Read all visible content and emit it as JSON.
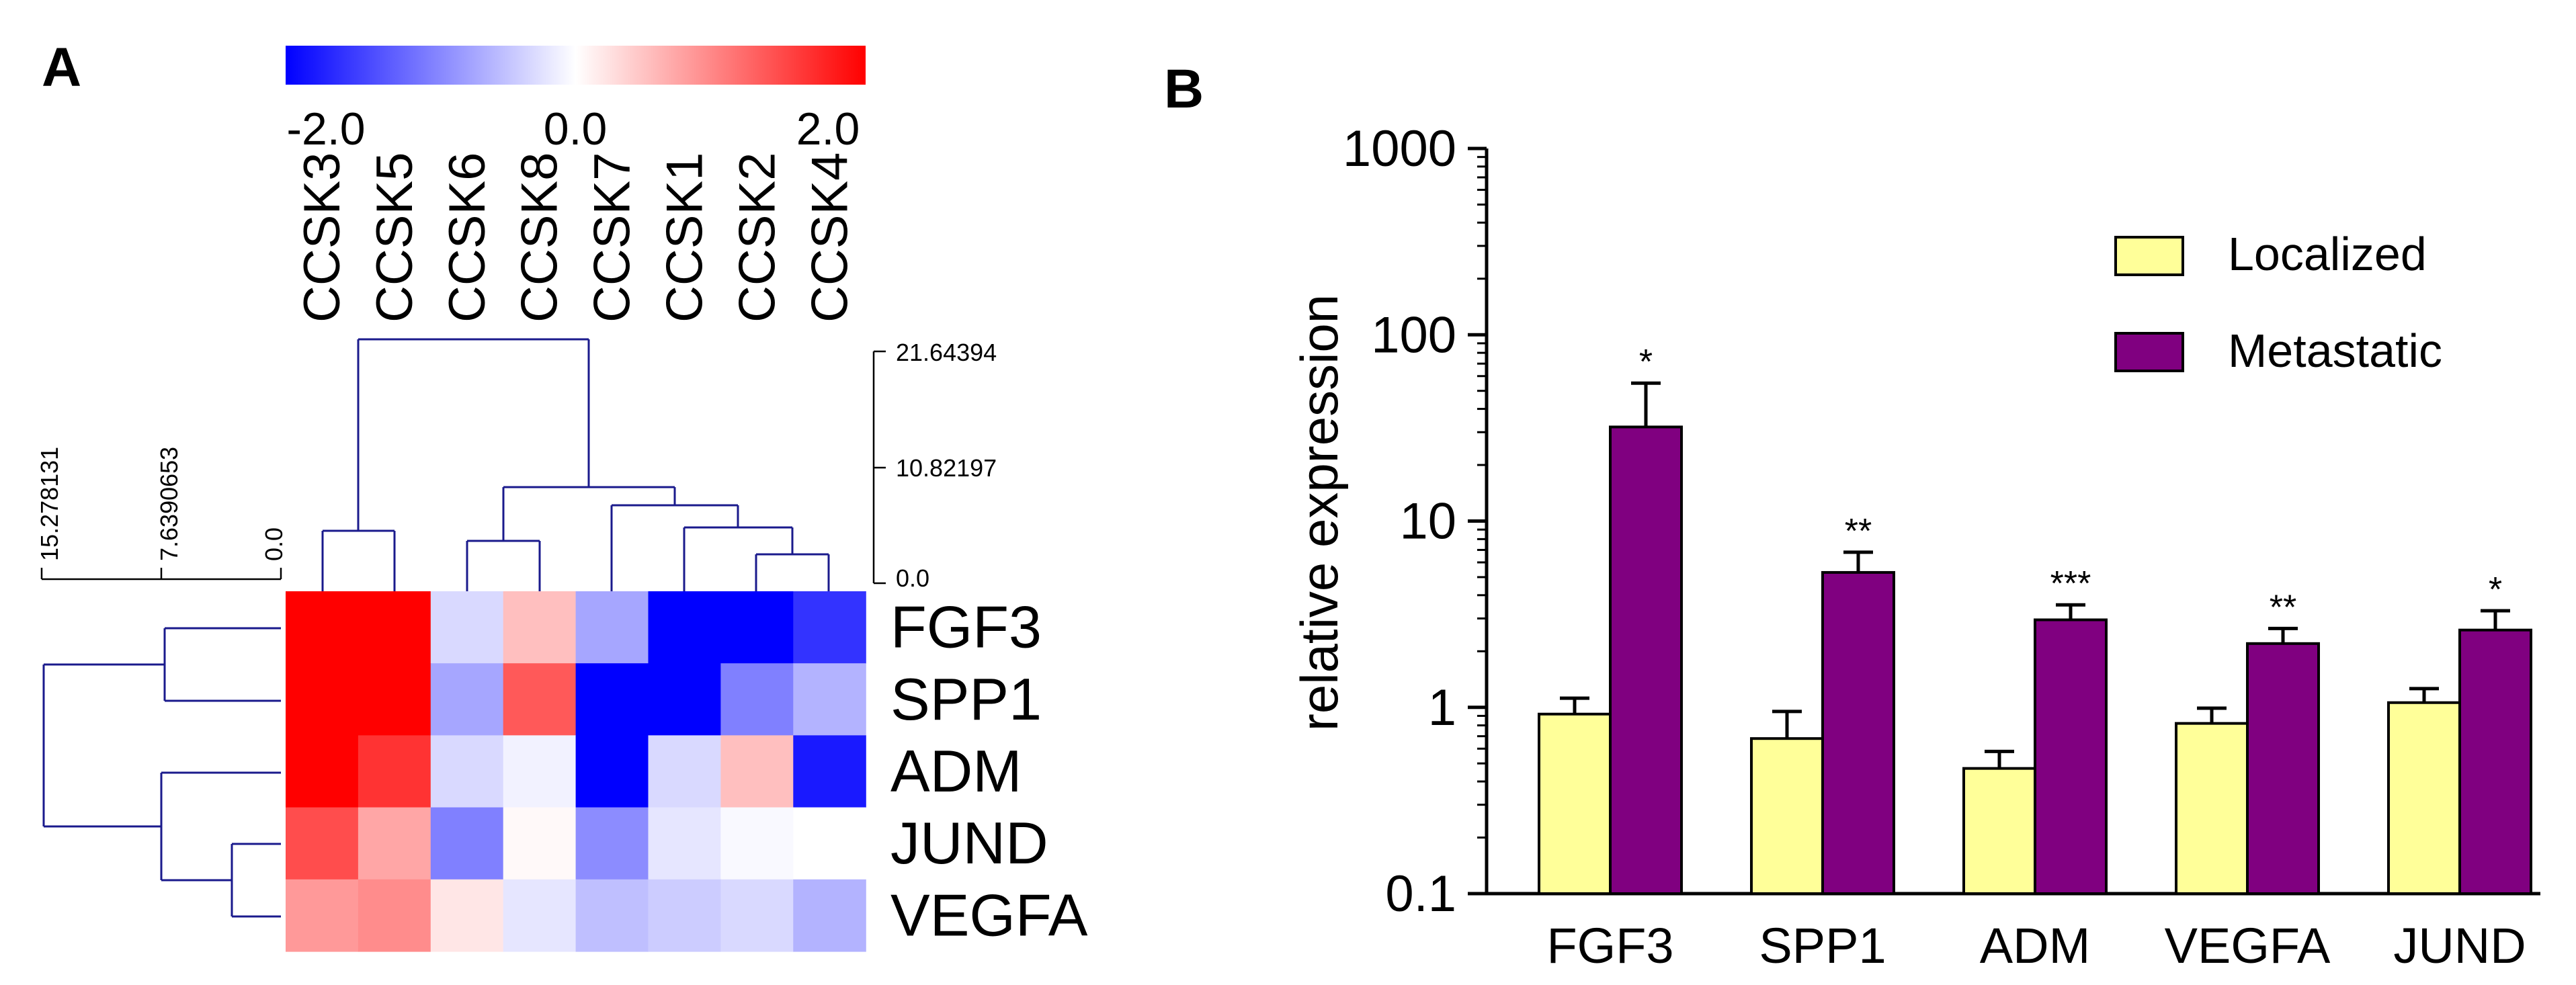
{
  "chart_data": [
    {
      "panel": "A",
      "type": "heatmap",
      "title": "",
      "color_scale": {
        "min": -2.0,
        "mid": 0.0,
        "max": 2.0,
        "labels": [
          "-2.0",
          "0.0",
          "2.0"
        ],
        "colors": [
          "#0000ff",
          "#ffffff",
          "#ff0000"
        ]
      },
      "columns": [
        "CCSK3",
        "CCSK5",
        "CCSK6",
        "CCSK8",
        "CCSK7",
        "CCSK1",
        "CCSK2",
        "CCSK4"
      ],
      "rows": [
        "FGF3",
        "SPP1",
        "ADM",
        "JUND",
        "VEGFA"
      ],
      "values": [
        [
          2.0,
          2.0,
          -0.3,
          0.5,
          -0.7,
          -2.0,
          -2.0,
          -1.6
        ],
        [
          2.0,
          2.0,
          -0.7,
          1.3,
          -2.0,
          -2.0,
          -1.0,
          -0.6
        ],
        [
          2.0,
          1.6,
          -0.3,
          -0.1,
          -2.0,
          -0.3,
          0.5,
          -1.8
        ],
        [
          1.4,
          0.7,
          -1.0,
          0.05,
          -0.9,
          -0.2,
          -0.05,
          0.0
        ],
        [
          0.8,
          0.9,
          0.2,
          -0.2,
          -0.5,
          -0.4,
          -0.3,
          -0.6
        ]
      ],
      "column_dendrogram": {
        "axis_labels": [
          "21.64394",
          "10.82197",
          "0.0"
        ],
        "axis_range": [
          0,
          21.64394
        ]
      },
      "row_dendrogram": {
        "axis_labels": [
          "15.278131",
          "7.6390653",
          "0.0"
        ],
        "axis_range": [
          0,
          15.278131
        ]
      }
    },
    {
      "panel": "B",
      "type": "bar",
      "title": "",
      "xlabel": "",
      "ylabel": "relative expression",
      "yscale": "log",
      "ylim": [
        0.1,
        1000
      ],
      "yticks": [
        0.1,
        1,
        10,
        100,
        1000
      ],
      "ytick_labels": [
        "0.1",
        "1",
        "10",
        "100",
        "1000"
      ],
      "categories": [
        "FGF3",
        "SPP1",
        "ADM",
        "VEGFA",
        "JUND"
      ],
      "series": [
        {
          "name": "Localized",
          "color": "#ffff99",
          "values": [
            0.92,
            0.68,
            0.47,
            0.82,
            1.06
          ],
          "err_upper": [
            1.12,
            0.95,
            0.58,
            0.99,
            1.26
          ]
        },
        {
          "name": "Metastatic",
          "color": "#800080",
          "values": [
            32,
            5.3,
            2.95,
            2.2,
            2.6
          ],
          "err_upper": [
            55,
            6.8,
            3.55,
            2.65,
            3.3
          ]
        }
      ],
      "significance": [
        "*",
        "**",
        "***",
        "**",
        "*"
      ],
      "legend": {
        "position": "top-right"
      }
    }
  ],
  "panel_labels": {
    "a": "A",
    "b": "B"
  }
}
